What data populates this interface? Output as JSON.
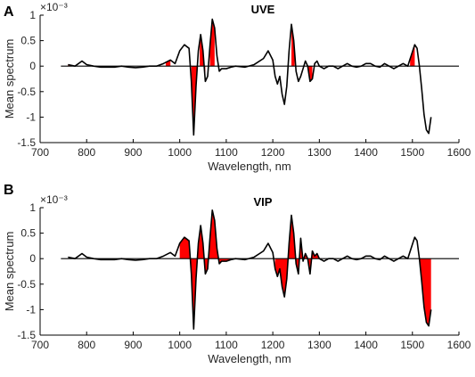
{
  "colors": {
    "highlight": "#ff0000",
    "line": "#000000"
  },
  "chart_data": [
    {
      "panel_letter": "A",
      "title": "UVE",
      "type": "line",
      "xlabel": "Wavelength, nm",
      "ylabel": "Mean spectrum",
      "y_exponent": "×10⁻³",
      "xlim": [
        700,
        1600
      ],
      "ylim": [
        -1.5,
        1.0
      ],
      "xticks": [
        700,
        800,
        900,
        1000,
        1100,
        1200,
        1300,
        1400,
        1500,
        1600
      ],
      "yticks": [
        1,
        0.5,
        0,
        -0.5,
        -1,
        -1.5
      ],
      "ytick_labels": [
        "1",
        "0.5",
        "0",
        "-0.5",
        "-1",
        "-1.5"
      ],
      "series": [
        {
          "x": [
            760,
            775,
            790,
            800,
            815,
            830,
            845,
            860,
            875,
            890,
            905,
            920,
            935,
            950,
            965,
            980,
            990,
            1000,
            1010,
            1020,
            1025,
            1030,
            1035,
            1040,
            1045,
            1050,
            1055,
            1060,
            1065,
            1070,
            1075,
            1080,
            1085,
            1090,
            1095,
            1100,
            1110,
            1120,
            1140,
            1160,
            1180,
            1190,
            1200,
            1205,
            1210,
            1215,
            1220,
            1225,
            1230,
            1235,
            1240,
            1245,
            1250,
            1255,
            1260,
            1265,
            1270,
            1275,
            1280,
            1285,
            1290,
            1295,
            1300,
            1310,
            1320,
            1330,
            1340,
            1350,
            1360,
            1370,
            1380,
            1390,
            1400,
            1410,
            1420,
            1430,
            1440,
            1450,
            1460,
            1470,
            1480,
            1490,
            1500,
            1505,
            1510,
            1515,
            1520,
            1525,
            1530,
            1535,
            1540
          ],
          "y": [
            0.03,
            0.0,
            0.1,
            0.03,
            0.0,
            -0.02,
            -0.02,
            -0.02,
            0.0,
            -0.02,
            -0.03,
            -0.02,
            0.0,
            0.0,
            0.05,
            0.12,
            0.05,
            0.3,
            0.42,
            0.35,
            -0.3,
            -1.35,
            -0.4,
            0.3,
            0.62,
            0.3,
            -0.3,
            -0.2,
            0.4,
            0.92,
            0.75,
            0.2,
            -0.1,
            -0.05,
            -0.05,
            -0.05,
            -0.02,
            0.0,
            -0.02,
            0.03,
            0.15,
            0.3,
            0.12,
            -0.2,
            -0.35,
            -0.2,
            -0.55,
            -0.75,
            -0.4,
            0.3,
            0.82,
            0.5,
            -0.1,
            -0.3,
            -0.2,
            -0.05,
            0.1,
            0.0,
            -0.3,
            -0.25,
            0.05,
            0.1,
            0.0,
            -0.05,
            0.0,
            0.0,
            -0.05,
            0.0,
            0.05,
            0.0,
            -0.02,
            0.0,
            0.05,
            0.05,
            0.0,
            -0.02,
            0.05,
            0.0,
            -0.05,
            0.0,
            0.05,
            0.0,
            0.28,
            0.42,
            0.35,
            0.0,
            -0.45,
            -0.95,
            -1.25,
            -1.32,
            -1.0
          ]
        }
      ],
      "highlight_ranges": [
        [
          760,
          770
        ],
        [
          970,
          980
        ],
        [
          1025,
          1037
        ],
        [
          1043,
          1055
        ],
        [
          1065,
          1075
        ],
        [
          1110,
          1120
        ],
        [
          1240,
          1247
        ],
        [
          1275,
          1285
        ],
        [
          1495,
          1505
        ]
      ]
    },
    {
      "panel_letter": "B",
      "title": "VIP",
      "type": "line",
      "xlabel": "Wavelength, nm",
      "ylabel": "Mean spectrum",
      "y_exponent": "×10⁻³",
      "xlim": [
        700,
        1600
      ],
      "ylim": [
        -1.5,
        1.0
      ],
      "xticks": [
        700,
        800,
        900,
        1000,
        1100,
        1200,
        1300,
        1400,
        1500,
        1600
      ],
      "yticks": [
        1,
        0.5,
        0,
        -0.5,
        -1,
        -1.5
      ],
      "ytick_labels": [
        "1",
        "0.5",
        "0",
        "-0.5",
        "-1",
        "-1.5"
      ],
      "series": [
        {
          "x": [
            760,
            775,
            790,
            800,
            815,
            830,
            845,
            860,
            875,
            890,
            905,
            920,
            935,
            950,
            965,
            980,
            990,
            1000,
            1010,
            1020,
            1025,
            1030,
            1035,
            1040,
            1045,
            1050,
            1055,
            1060,
            1065,
            1070,
            1075,
            1080,
            1085,
            1090,
            1095,
            1100,
            1110,
            1120,
            1140,
            1160,
            1180,
            1190,
            1200,
            1205,
            1210,
            1215,
            1220,
            1225,
            1230,
            1235,
            1240,
            1245,
            1250,
            1255,
            1260,
            1265,
            1270,
            1275,
            1280,
            1285,
            1290,
            1295,
            1300,
            1310,
            1320,
            1330,
            1340,
            1350,
            1360,
            1370,
            1380,
            1390,
            1400,
            1410,
            1420,
            1430,
            1440,
            1450,
            1460,
            1470,
            1480,
            1490,
            1500,
            1505,
            1510,
            1515,
            1520,
            1525,
            1530,
            1535,
            1540
          ],
          "y": [
            0.03,
            0.0,
            0.1,
            0.03,
            0.0,
            -0.02,
            -0.02,
            -0.02,
            0.0,
            -0.02,
            -0.03,
            -0.02,
            0.0,
            0.0,
            0.05,
            0.12,
            0.05,
            0.3,
            0.42,
            0.35,
            -0.3,
            -1.38,
            -0.4,
            0.3,
            0.65,
            0.3,
            -0.3,
            -0.2,
            0.4,
            0.95,
            0.75,
            0.2,
            -0.1,
            -0.05,
            -0.05,
            -0.05,
            -0.02,
            0.0,
            -0.02,
            0.03,
            0.15,
            0.3,
            0.12,
            -0.2,
            -0.35,
            -0.2,
            -0.55,
            -0.75,
            -0.4,
            0.3,
            0.85,
            0.5,
            -0.1,
            -0.3,
            0.4,
            -0.05,
            0.1,
            0.0,
            -0.3,
            0.15,
            0.05,
            0.1,
            0.0,
            -0.05,
            0.0,
            0.0,
            -0.05,
            0.0,
            0.05,
            0.0,
            -0.02,
            0.0,
            0.05,
            0.05,
            0.0,
            -0.02,
            0.05,
            0.0,
            -0.05,
            0.0,
            0.05,
            0.0,
            0.28,
            0.42,
            0.35,
            0.0,
            -0.45,
            -0.95,
            -1.25,
            -1.32,
            -1.0
          ]
        }
      ],
      "highlight_ranges": [
        [
          1000,
          1120
        ],
        [
          1205,
          1305
        ],
        [
          1515,
          1540
        ]
      ]
    }
  ]
}
